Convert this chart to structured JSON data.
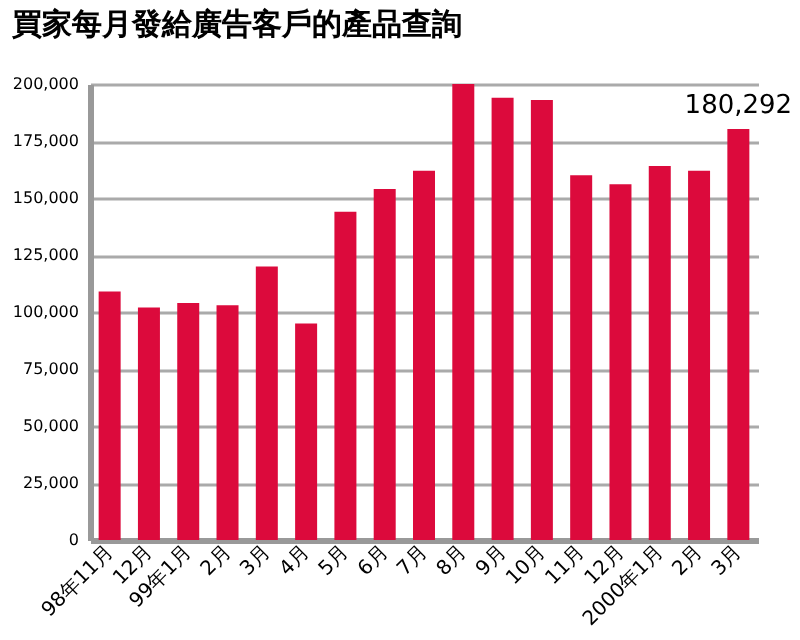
{
  "chart_data": {
    "type": "bar",
    "title": "買家每月發給廣告客戶的產品查詢",
    "categories": [
      "98年11月",
      "12月",
      "99年1月",
      "2月",
      "3月",
      "4月",
      "5月",
      "6月",
      "7月",
      "8月",
      "9月",
      "10月",
      "11月",
      "12月",
      "2000年1月",
      "2月",
      "3月"
    ],
    "values": [
      109000,
      102000,
      104000,
      103000,
      120000,
      95000,
      144000,
      154000,
      162000,
      200000,
      194000,
      193000,
      160000,
      156000,
      164000,
      162000,
      180292
    ],
    "value_labels": [
      null,
      null,
      null,
      null,
      null,
      null,
      null,
      null,
      null,
      null,
      null,
      null,
      null,
      null,
      null,
      null,
      "180,292"
    ],
    "color": "#dc0a3c",
    "ylim": [
      0,
      200000
    ],
    "yticks": [
      0,
      {
        "value": 25000,
        "label": "25,000"
      },
      {
        "value": 50000,
        "label": "50,000"
      },
      {
        "value": 75000,
        "label": "75,000"
      },
      {
        "value": 100000,
        "label": "100,000"
      },
      {
        "value": 125000,
        "label": "125,000"
      },
      {
        "value": 150000,
        "label": "150,000"
      },
      {
        "value": 175000,
        "label": "175,000"
      },
      {
        "value": 200000,
        "label": "200,000"
      }
    ],
    "grid": "y"
  }
}
